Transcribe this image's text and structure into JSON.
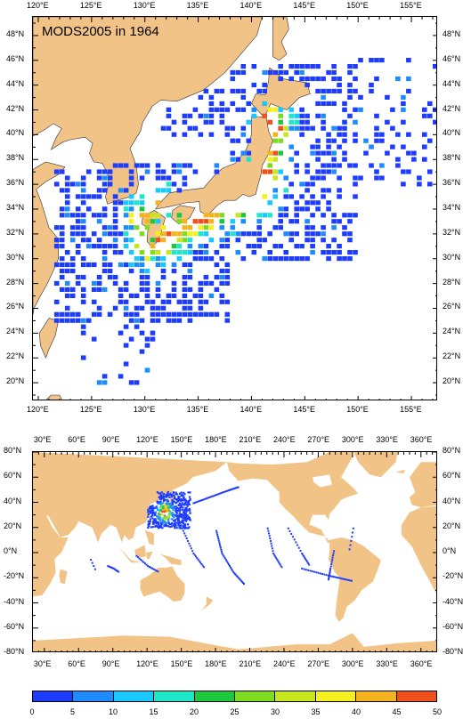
{
  "top_map": {
    "title": "MODS2005 in 1964",
    "lon_labels": [
      "120°E",
      "125°E",
      "130°E",
      "135°E",
      "140°E",
      "145°E",
      "150°E",
      "155°E"
    ],
    "lat_labels": [
      "48°N",
      "46°N",
      "44°N",
      "42°N",
      "40°N",
      "38°N",
      "36°N",
      "34°N",
      "32°N",
      "30°N",
      "28°N",
      "26°N",
      "24°N",
      "22°N",
      "20°N"
    ],
    "lon_range": [
      119.5,
      157.5
    ],
    "lat_range": [
      18.5,
      49.5
    ]
  },
  "world_map": {
    "lon_labels": [
      "30°E",
      "60°E",
      "90°E",
      "120°E",
      "150°E",
      "180°E",
      "210°E",
      "240°E",
      "270°E",
      "300°E",
      "330°E",
      "360°E"
    ],
    "lat_labels": [
      "80°N",
      "60°N",
      "40°N",
      "20°N",
      "0°N",
      "-20°N",
      "-40°N",
      "-60°N",
      "-80°N"
    ],
    "lon_range": [
      20,
      375
    ],
    "lat_range": [
      -80,
      80
    ]
  },
  "colorbar": {
    "ticks": [
      "0",
      "5",
      "10",
      "15",
      "20",
      "25",
      "30",
      "35",
      "40",
      "45",
      "50"
    ],
    "colors": [
      "#1e3cff",
      "#1e8cff",
      "#19c8ff",
      "#1ee6c8",
      "#1ec83c",
      "#7ddc1e",
      "#c8e61e",
      "#f5f01e",
      "#f5b41e",
      "#f0501e"
    ]
  },
  "colors": {
    "land": "#f2c387",
    "ocean": "#ffffff",
    "obs_low": "#1e3cff"
  }
}
